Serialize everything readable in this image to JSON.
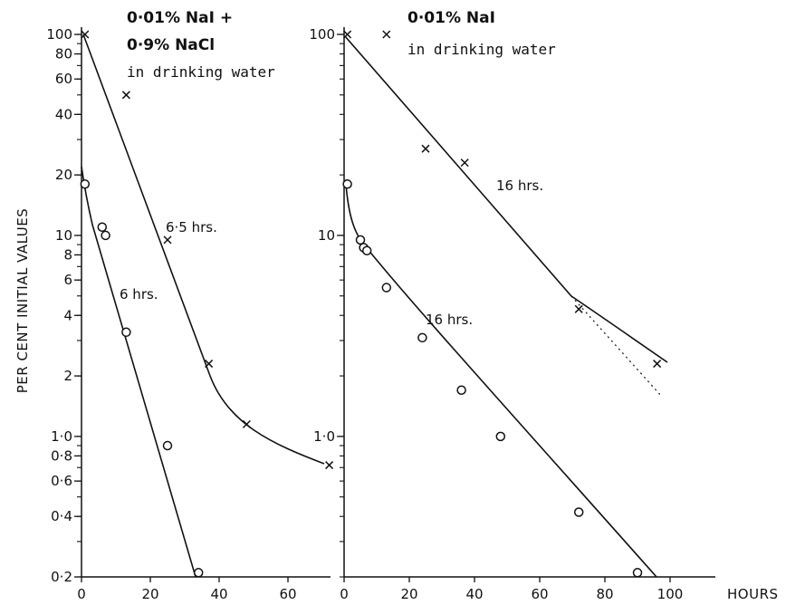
{
  "figure": {
    "ylabel": "PER CENT INITIAL VALUES",
    "xlabel": "HOURS"
  },
  "chart_data": [
    {
      "type": "scatter",
      "panel": "left",
      "annotation_lines": [
        "0·01% NaI +",
        "0·9% NaCl",
        "in drinking water"
      ],
      "y_scale": "log",
      "xlim": [
        0,
        72
      ],
      "ylim": [
        0.2,
        100
      ],
      "x_ticks": [
        0,
        20,
        40,
        60
      ],
      "x_tick_labels": [
        "0",
        "20",
        "40",
        "60"
      ],
      "y_ticks": [
        100,
        80,
        60,
        40,
        20,
        10,
        8,
        6,
        4,
        2,
        1.0,
        0.8,
        0.6,
        0.4,
        0.2
      ],
      "y_tick_labels": [
        "100",
        "80",
        "60",
        "40",
        "20",
        "10",
        "8",
        "6",
        "4",
        "2",
        "1·0",
        "0·8",
        "0·6",
        "0·4",
        "0·2"
      ],
      "series": [
        {
          "marker": "x",
          "x": [
            1,
            13,
            25,
            37,
            48,
            72
          ],
          "y": [
            100,
            50,
            9.5,
            2.3,
            1.15,
            0.72
          ],
          "fit_label": "6·5 hrs."
        },
        {
          "marker": "o",
          "x": [
            1,
            6,
            7,
            13,
            25,
            34
          ],
          "y": [
            18,
            11,
            10,
            3.3,
            0.9,
            0.21
          ],
          "fit_label": "6 hrs."
        }
      ]
    },
    {
      "type": "scatter",
      "panel": "right",
      "annotation_lines": [
        "0·01% NaI",
        "in drinking water"
      ],
      "y_scale": "log",
      "xlim": [
        0,
        100
      ],
      "ylim": [
        0.2,
        100
      ],
      "x_ticks": [
        0,
        20,
        40,
        60,
        80,
        100
      ],
      "x_tick_labels": [
        "0",
        "20",
        "40",
        "60",
        "80",
        "100"
      ],
      "y_ticks": [
        100,
        10,
        1.0
      ],
      "y_tick_labels": [
        "100",
        "10",
        "1·0"
      ],
      "series": [
        {
          "marker": "x",
          "x": [
            1,
            13,
            25,
            37,
            72,
            96
          ],
          "y": [
            100,
            100,
            27,
            23,
            4.3,
            2.3
          ],
          "fit_label": "16 hrs."
        },
        {
          "marker": "o",
          "x": [
            1,
            5,
            6,
            7,
            13,
            24,
            36,
            48,
            72,
            90
          ],
          "y": [
            18,
            9.5,
            8.7,
            8.4,
            5.5,
            3.1,
            1.7,
            1.0,
            0.42,
            0.21
          ],
          "fit_label": "16 hrs."
        }
      ]
    }
  ]
}
